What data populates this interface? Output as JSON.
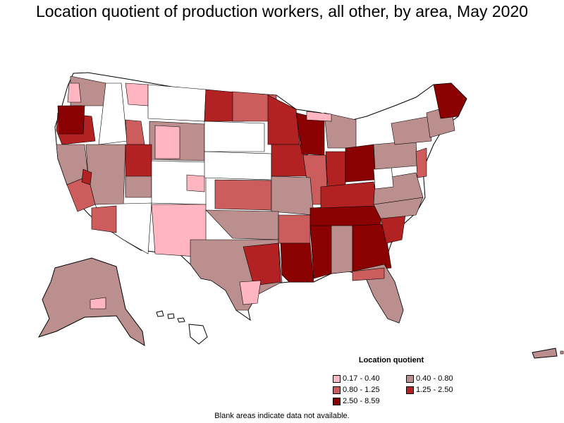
{
  "title": "Location quotient of production workers, all other, by area, May 2020",
  "legend": {
    "title": "Location quotient",
    "items": [
      {
        "label": "0.17 - 0.40",
        "color": "#ffb6c1"
      },
      {
        "label": "0.40 - 0.80",
        "color": "#bc8f8f"
      },
      {
        "label": "0.80 - 1.25",
        "color": "#cd5c5c"
      },
      {
        "label": "1.25 - 2.50",
        "color": "#b22222"
      },
      {
        "label": "2.50 - 8.59",
        "color": "#8b0000"
      }
    ]
  },
  "note": "Blank areas indicate data not available.",
  "colors": {
    "blank": "#ffffff",
    "border": "#000000"
  }
}
